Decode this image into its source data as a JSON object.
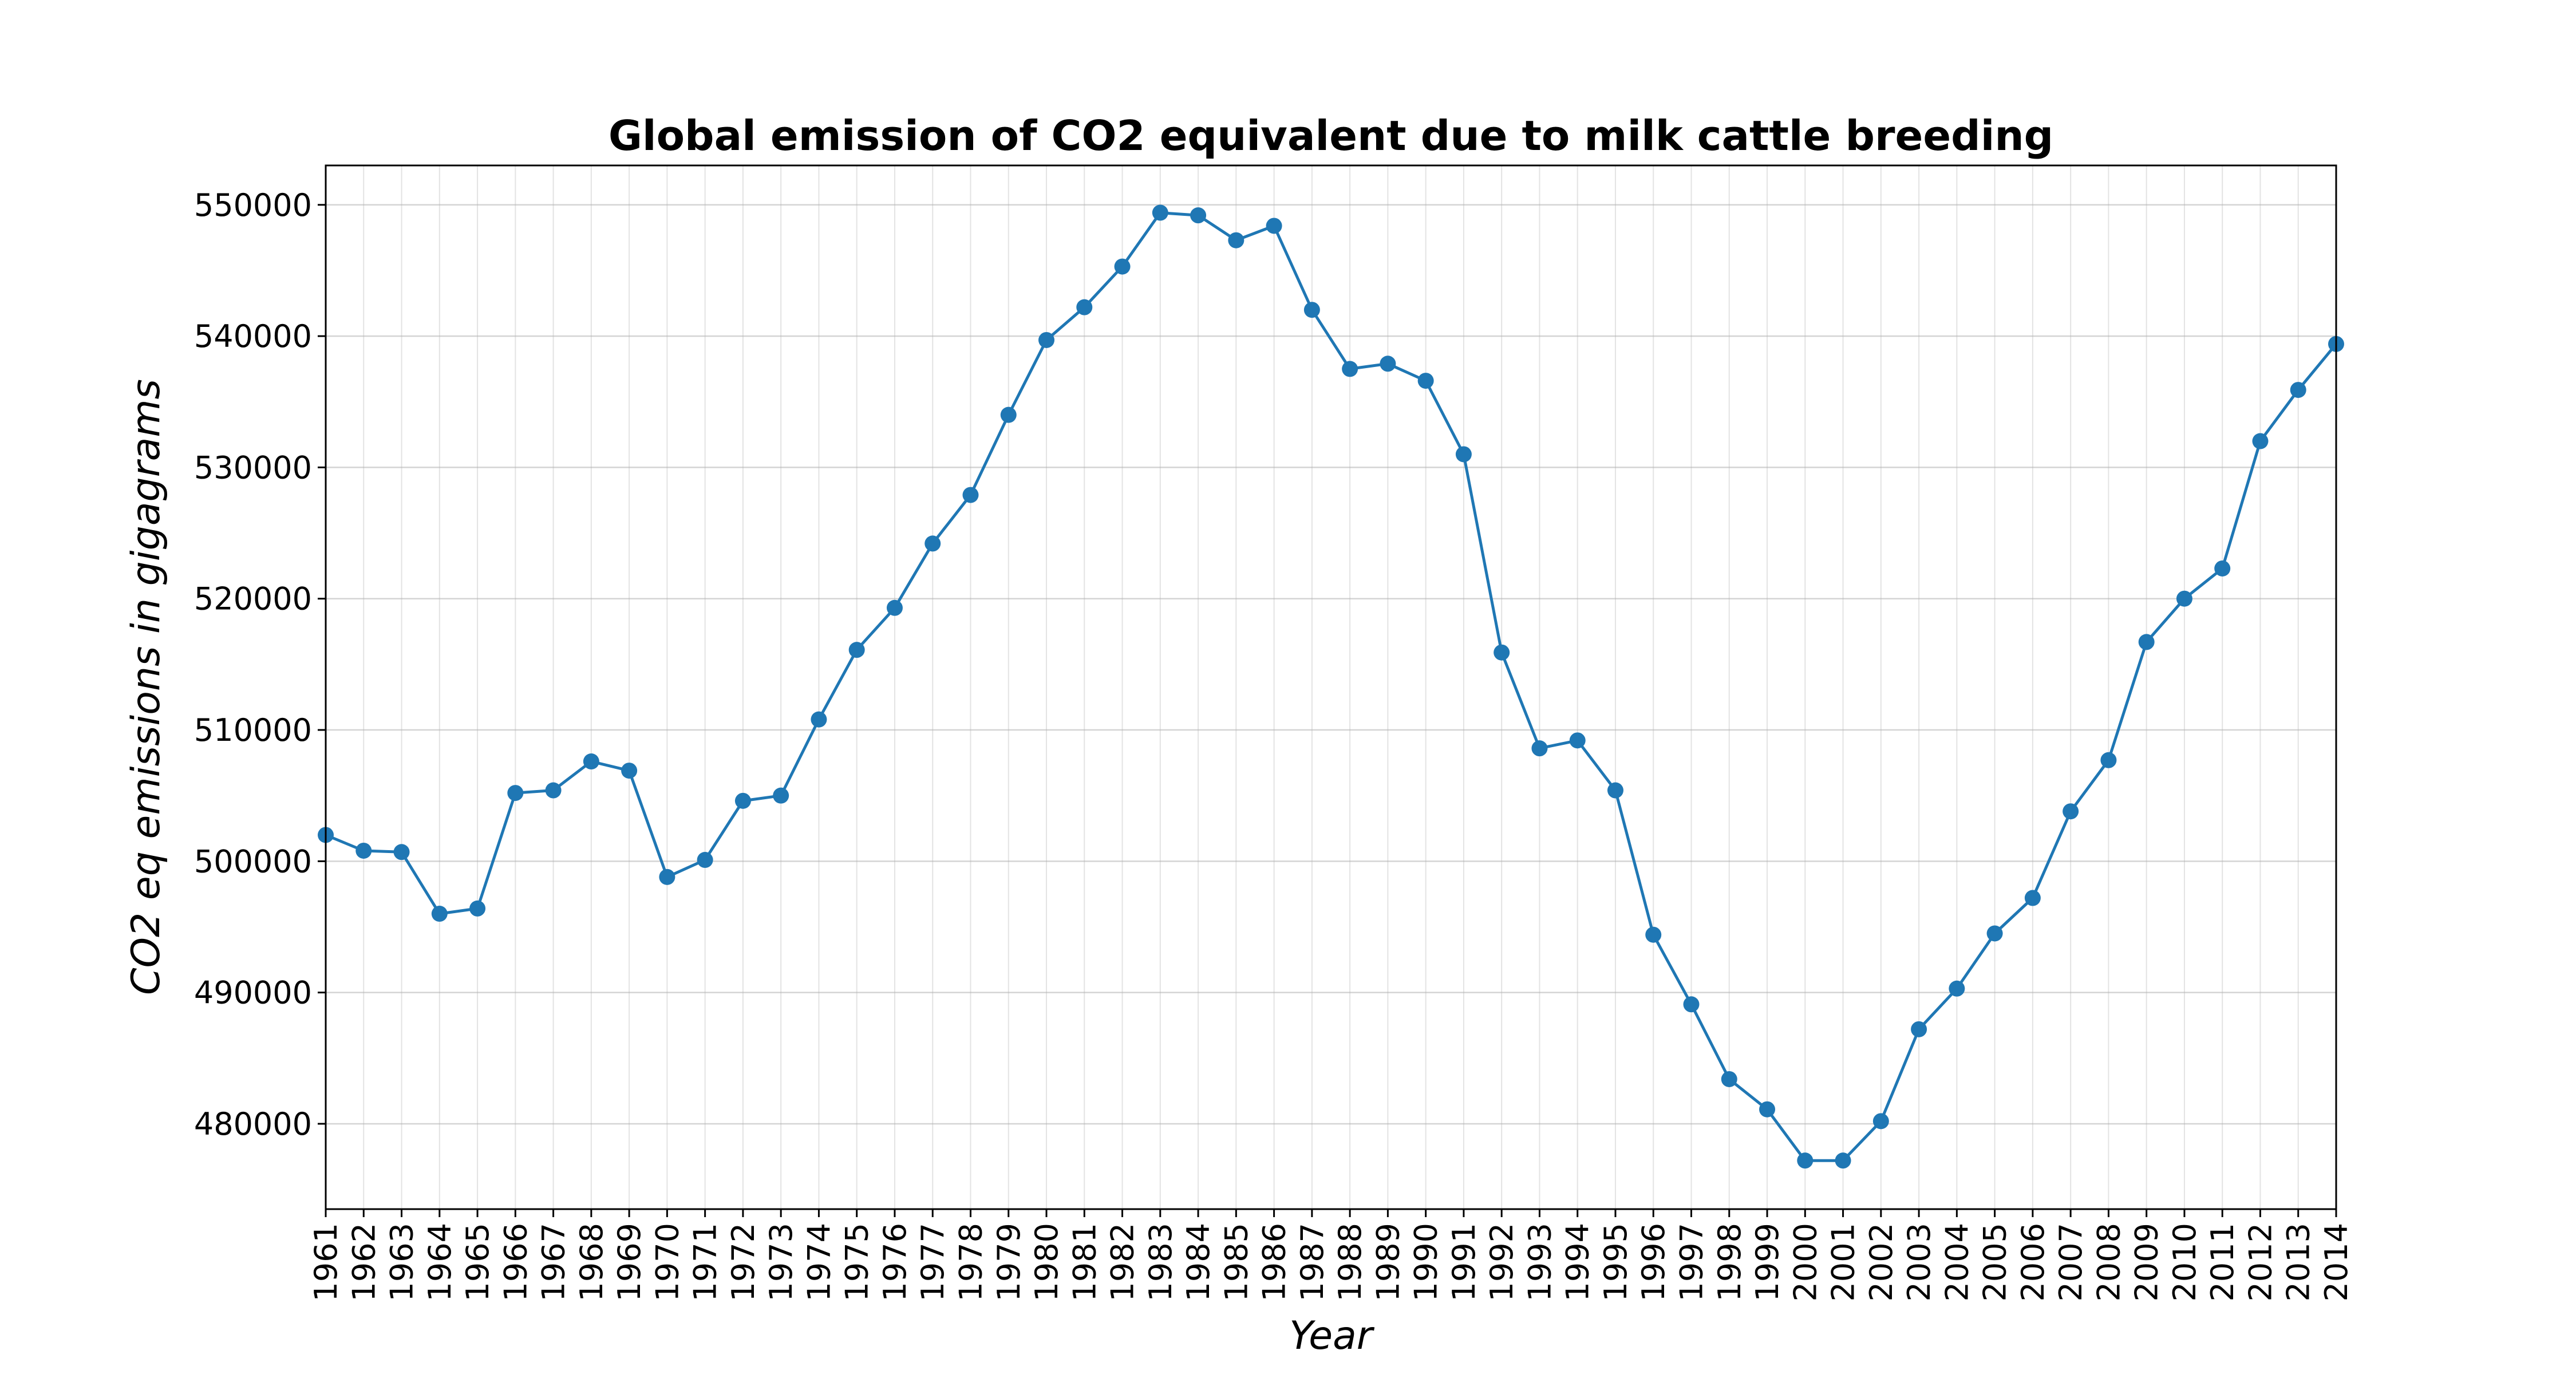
{
  "chart_data": {
    "type": "line",
    "title": "Global emission of CO2 equivalent due to milk cattle breeding",
    "xlabel": "Year",
    "ylabel": "CO2 eq emissions in gigagrams",
    "ylim": [
      473500,
      553000
    ],
    "y_ticks": [
      480000,
      490000,
      500000,
      510000,
      520000,
      530000,
      540000,
      550000
    ],
    "grid": true,
    "x": [
      "1961",
      "1962",
      "1963",
      "1964",
      "1965",
      "1966",
      "1967",
      "1968",
      "1969",
      "1970",
      "1971",
      "1972",
      "1973",
      "1974",
      "1975",
      "1976",
      "1977",
      "1978",
      "1979",
      "1980",
      "1981",
      "1982",
      "1983",
      "1984",
      "1985",
      "1986",
      "1987",
      "1988",
      "1989",
      "1990",
      "1991",
      "1992",
      "1993",
      "1994",
      "1995",
      "1996",
      "1997",
      "1998",
      "1999",
      "2000",
      "2001",
      "2002",
      "2003",
      "2004",
      "2005",
      "2006",
      "2007",
      "2008",
      "2009",
      "2010",
      "2011",
      "2012",
      "2013",
      "2014"
    ],
    "series": [
      {
        "color": "#1f77b4",
        "marker": "circle",
        "values": [
          502000,
          500800,
          500700,
          496000,
          496400,
          505200,
          505400,
          507600,
          506900,
          498800,
          500100,
          504600,
          505000,
          510800,
          516100,
          519300,
          524200,
          527900,
          534000,
          539700,
          542200,
          545300,
          549400,
          549200,
          547300,
          548400,
          542000,
          537500,
          537900,
          536600,
          531000,
          515900,
          508600,
          509200,
          505400,
          494400,
          489100,
          483400,
          481100,
          477200,
          477200,
          480200,
          487200,
          490300,
          494500,
          497200,
          503800,
          507700,
          516700,
          520000,
          522300,
          532000,
          535900,
          539400
        ]
      }
    ]
  }
}
